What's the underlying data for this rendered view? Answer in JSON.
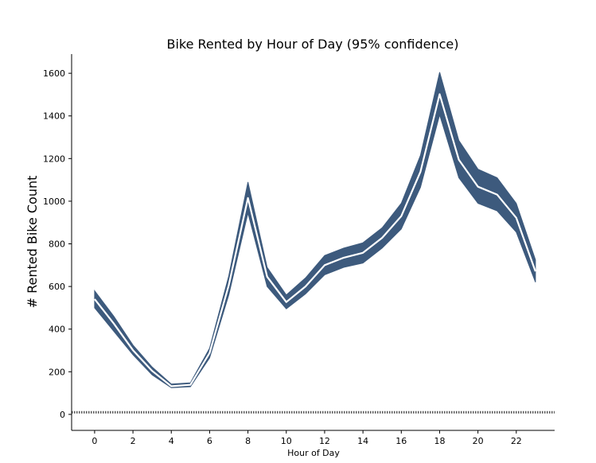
{
  "chart_data": {
    "type": "line",
    "title": "Bike Rented by Hour of Day (95% confidence)",
    "xlabel": "Hour of Day",
    "ylabel": "# Rented Bike Count",
    "xlim": [
      -1.2,
      24
    ],
    "ylim": [
      -75,
      1690
    ],
    "xticks": [
      0,
      2,
      4,
      6,
      8,
      10,
      12,
      14,
      16,
      18,
      20,
      22
    ],
    "yticks": [
      0,
      200,
      400,
      600,
      800,
      1000,
      1200,
      1400,
      1600
    ],
    "grid": false,
    "series": [
      {
        "color": "#3d5a7d",
        "line_color": "#ffffff",
        "x": [
          0,
          1,
          2,
          3,
          4,
          5,
          6,
          7,
          8,
          9,
          10,
          11,
          12,
          13,
          14,
          15,
          16,
          17,
          18,
          19,
          20,
          21,
          22,
          23
        ],
        "values": [
          541,
          426,
          301,
          204,
          132,
          139,
          288,
          606,
          1015,
          646,
          527,
          600,
          700,
          735,
          758,
          828,
          930,
          1138,
          1502,
          1195,
          1068,
          1031,
          922,
          671
        ],
        "lower": [
          500,
          390,
          280,
          185,
          125,
          130,
          265,
          560,
          945,
          600,
          495,
          565,
          655,
          690,
          710,
          780,
          870,
          1065,
          1405,
          1110,
          990,
          955,
          855,
          620
        ],
        "upper": [
          580,
          460,
          325,
          222,
          142,
          148,
          310,
          650,
          1090,
          690,
          560,
          640,
          745,
          780,
          805,
          875,
          990,
          1215,
          1605,
          1285,
          1150,
          1110,
          990,
          725
        ]
      }
    ],
    "reference_line": {
      "y": 10,
      "style": "dotted",
      "color": "#555555"
    }
  }
}
